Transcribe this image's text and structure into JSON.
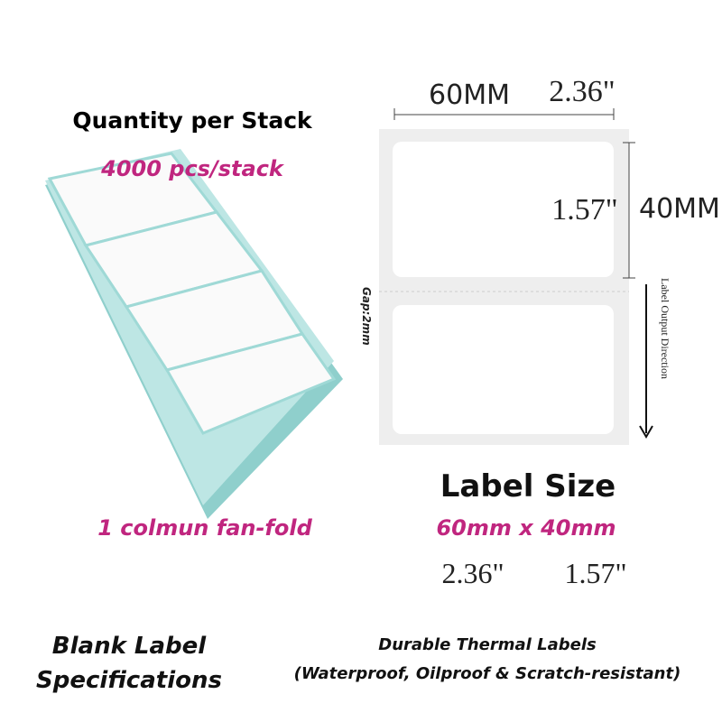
{
  "left": {
    "heading": "Quantity per Stack",
    "quantity": "4000 pcs/stack",
    "fold": "1 colmun fan-fold"
  },
  "diagram": {
    "width_mm": "60MM",
    "width_in": "2.36\"",
    "height_in": "1.57\"",
    "height_mm": "40MM",
    "gap": "Gap:2mm",
    "direction": "Label Output Direction"
  },
  "size": {
    "heading": "Label Size",
    "metric": "60mm x 40mm",
    "width_in": "2.36\"",
    "height_in": "1.57\""
  },
  "footer": {
    "title_line1": "Blank Label",
    "title_line2": "Specifications",
    "desc_line1": "Durable Thermal Labels",
    "desc_line2": "(Waterproof, Oilproof & Scratch-resistant)"
  }
}
